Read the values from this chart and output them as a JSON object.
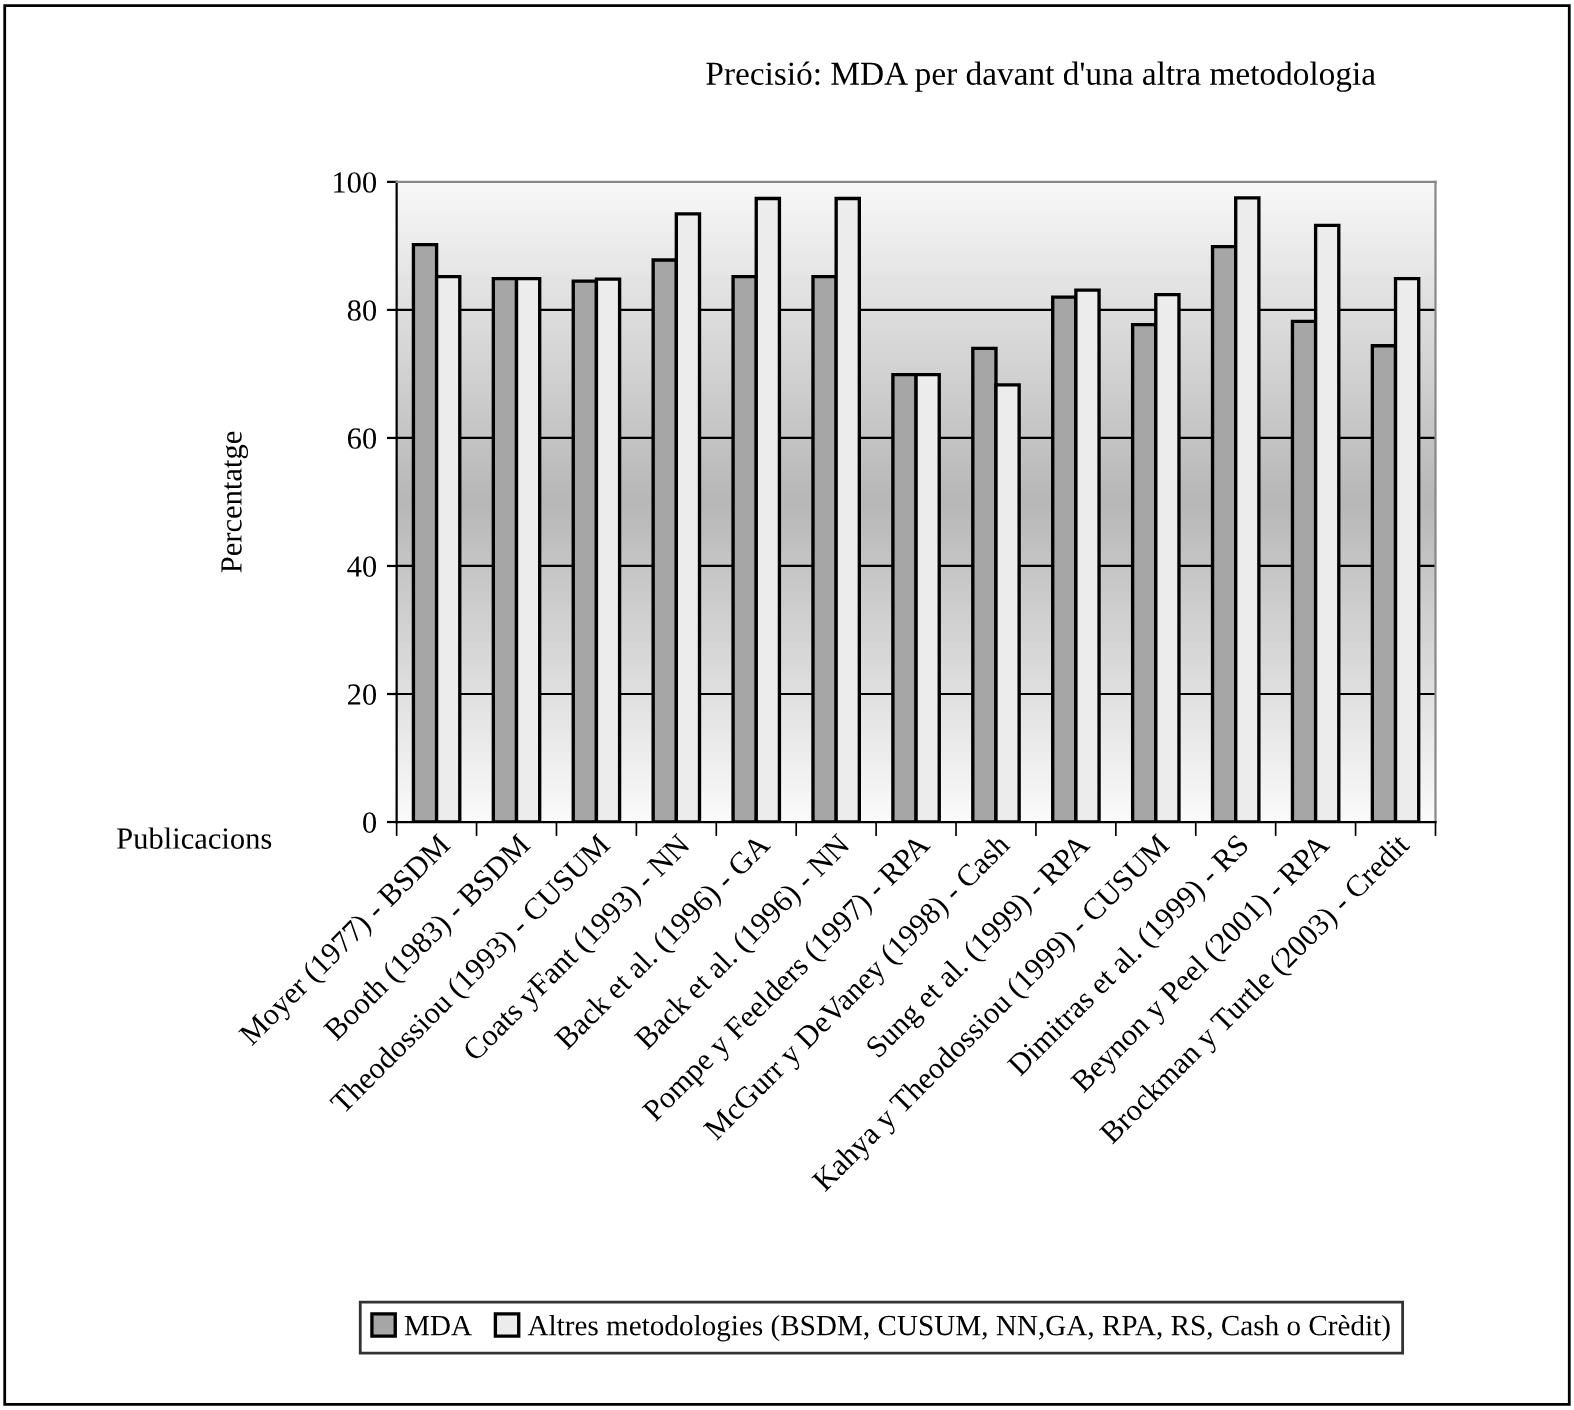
{
  "chart_data": {
    "type": "bar",
    "title": "Precisió: MDA per davant d'una altra metodologia",
    "xlabel": "Publicacions",
    "ylabel": "Percentatge",
    "categories": [
      "Moyer (1977) - BSDM",
      "Booth (1983) - BSDM",
      "Theodossiou (1993) - CUSUM",
      "Coats yFant (1993) - NN",
      "Back et al. (1996) - GA",
      "Back et al. (1996) - NN",
      "Pompe y Feelders (1997) - RPA",
      "McGurr y DeVaney (1998) - Cash",
      "Sung et al. (1999) - RPA",
      "Kahya y Theodossiou (1999) - CUSUM",
      "Dimitras et al. (1999) - RS",
      "Beynon y Peel (2001) - RPA",
      "Brockman y Turtle (2003) - Credit"
    ],
    "series": [
      {
        "name": "MDA",
        "color": "#a6a6a6",
        "values": [
          90.2,
          84.9,
          84.5,
          87.8,
          85.2,
          85.2,
          69.9,
          74.0,
          82.0,
          77.7,
          89.9,
          78.2,
          74.4
        ]
      },
      {
        "name": "Altres metodologies (BSDM, CUSUM, NN,GA, RPA, RS, Cash o Crèdit)",
        "color": "#ececec",
        "values": [
          85.2,
          84.9,
          84.8,
          95.0,
          97.4,
          97.4,
          69.9,
          68.3,
          83.1,
          82.4,
          97.5,
          93.2,
          84.9
        ]
      }
    ],
    "ylim": [
      0,
      100
    ],
    "yticks": [
      0,
      20,
      40,
      60,
      80,
      100
    ],
    "grid": "y",
    "legend": "bottom"
  }
}
